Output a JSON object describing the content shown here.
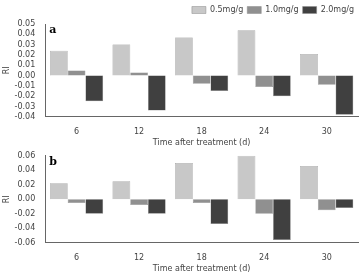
{
  "chart_data": [
    {
      "type": "bar",
      "categories": [
        "6",
        "12",
        "18",
        "24",
        "30"
      ],
      "series": [
        {
          "name": "0.5mg/g",
          "color": "#c8c8c8",
          "values": [
            0.024,
            0.03,
            0.037,
            0.044,
            0.021
          ]
        },
        {
          "name": "1.0mg/g",
          "color": "#909090",
          "values": [
            0.005,
            0.003,
            -0.008,
            -0.011,
            -0.009
          ]
        },
        {
          "name": "2.0mg/g",
          "color": "#404040",
          "values": [
            -0.025,
            -0.034,
            -0.015,
            -0.02,
            -0.038
          ]
        }
      ],
      "ylim": [
        -0.04,
        0.05
      ],
      "yticks": [
        -0.04,
        -0.03,
        -0.02,
        -0.01,
        {
          "value": 0,
          "label": "0.00"
        },
        0.01,
        0.02,
        0.03,
        0.04,
        0.05
      ],
      "xlabel": "Time after treatment (d)",
      "ylabel": "RI",
      "annotations": [
        "a"
      ],
      "legend": "upper right",
      "grid": false
    },
    {
      "type": "bar",
      "categories": [
        "6",
        "12",
        "18",
        "24",
        "30"
      ],
      "series": [
        {
          "name": "0.5mg/g",
          "color": "#c8c8c8",
          "values": [
            0.022,
            0.025,
            0.05,
            0.06,
            0.046
          ]
        },
        {
          "name": "1.0mg/g",
          "color": "#909090",
          "values": [
            -0.005,
            -0.008,
            -0.005,
            -0.02,
            -0.015
          ]
        },
        {
          "name": "2.0mg/g",
          "color": "#404040",
          "values": [
            -0.02,
            -0.02,
            -0.034,
            -0.056,
            -0.012
          ]
        }
      ],
      "ylim": [
        -0.06,
        0.06
      ],
      "yticks": [
        -0.06,
        -0.04,
        -0.02,
        {
          "value": 0,
          "label": "0.00"
        },
        0.02,
        0.04,
        0.06
      ],
      "xlabel": "Time after treatment (d)",
      "ylabel": "RI",
      "annotations": [
        "b"
      ],
      "grid": false
    }
  ]
}
